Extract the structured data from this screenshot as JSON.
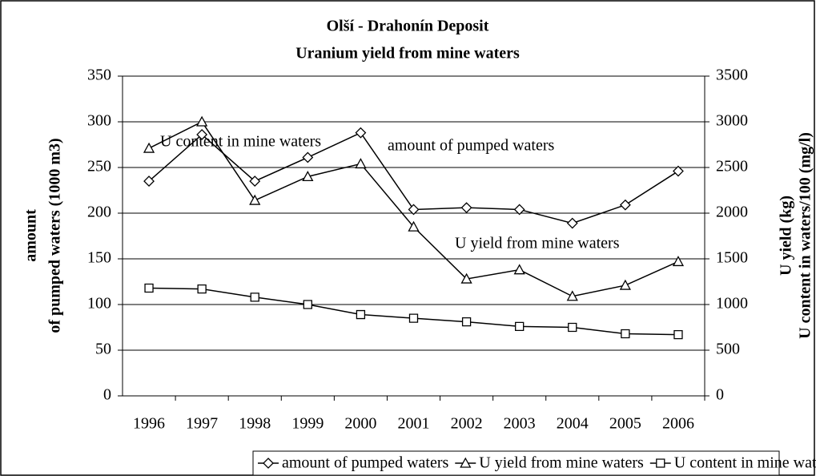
{
  "chart_data": {
    "type": "line",
    "title": "Olší - Drahonín Deposit",
    "subtitle": "Uranium yield from mine waters",
    "ylabel": [
      "amount",
      "of pumped waters (1000 m3)"
    ],
    "y2label": [
      "U yield (kg)",
      "U content in waters/100 (mg/l)"
    ],
    "categories": [
      "1996",
      "1997",
      "1998",
      "1999",
      "2000",
      "2001",
      "2002",
      "2003",
      "2004",
      "2005",
      "2006"
    ],
    "series": [
      {
        "name": "amount of pumped waters",
        "color": "#000000",
        "marker": "diamond",
        "axis": "y",
        "values": [
          235,
          286,
          235,
          261,
          288,
          204,
          206,
          204,
          189,
          209,
          246
        ]
      },
      {
        "name": "U yield from mine waters",
        "color": "#000000",
        "marker": "triangle",
        "axis": "y2",
        "values": [
          2710,
          3000,
          2140,
          2400,
          2540,
          1850,
          1280,
          1380,
          1090,
          1210,
          1470
        ]
      },
      {
        "name": "U content in mine waters",
        "color": "#000000",
        "marker": "square",
        "axis": "y2",
        "values": [
          1180,
          1170,
          1080,
          1000,
          890,
          850,
          810,
          760,
          750,
          680,
          670
        ]
      }
    ],
    "annotations": [
      "amount of pumped  waters",
      "U yield from mine waters",
      "U content in mine waters"
    ],
    "ylim": [
      0,
      350
    ],
    "yticks": [
      0,
      50,
      100,
      150,
      200,
      250,
      300,
      350
    ],
    "y2lim": [
      0,
      3500
    ],
    "y2ticks": [
      0,
      500,
      1000,
      1500,
      2000,
      2500,
      3000,
      3500
    ],
    "grid": true,
    "legend": "bottom"
  }
}
